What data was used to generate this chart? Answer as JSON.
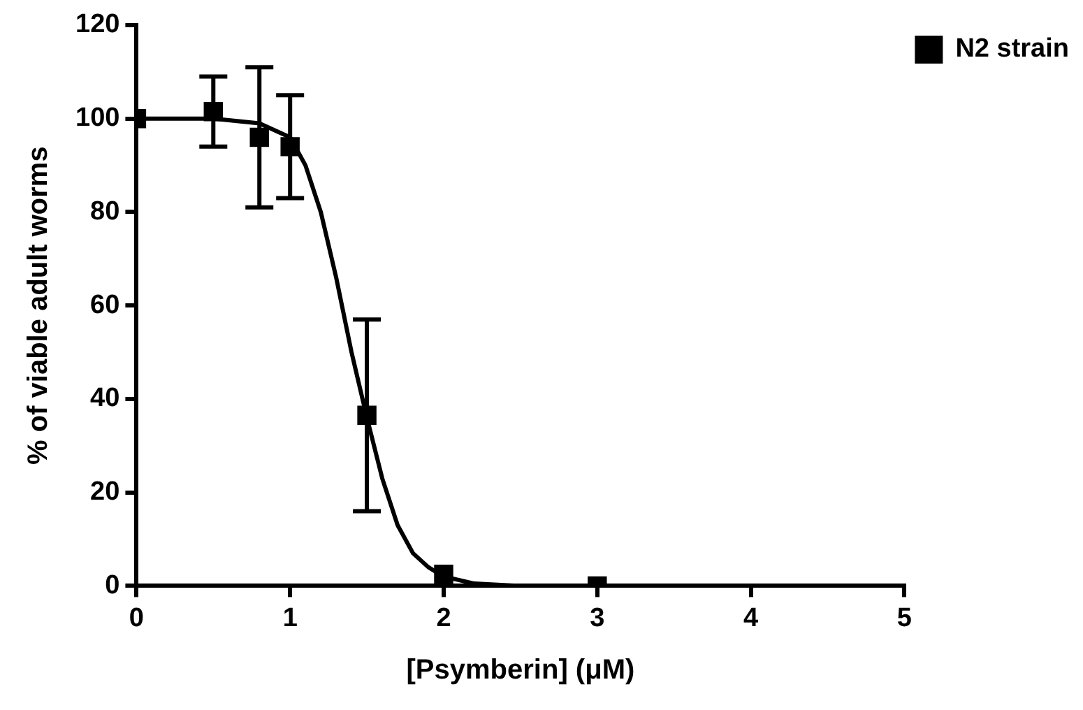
{
  "chart_data": {
    "type": "scatter",
    "xlabel": "[Psymberin] (μM)",
    "ylabel": "% of viable adult worms",
    "xlim": [
      0,
      5
    ],
    "xticks": [
      0,
      1,
      2,
      3,
      4,
      5
    ],
    "ylim": [
      0,
      120
    ],
    "yticks": [
      0,
      20,
      40,
      60,
      80,
      100,
      120
    ],
    "grid": false,
    "legend": "top right",
    "marker": "square",
    "series": [
      {
        "name": "N2 strain",
        "color": "#000000",
        "x": [
          0,
          0.5,
          0.8,
          1,
          1.5,
          2,
          3
        ],
        "values": [
          100,
          101.5,
          96,
          94,
          36.5,
          2.5,
          0
        ],
        "errors": [
          null,
          7.5,
          15,
          11,
          20.5,
          null,
          null
        ]
      },
      {
        "type": "line",
        "color": "#000000",
        "marker": "none",
        "line_style": "solid",
        "x": [
          0,
          0.5,
          0.8,
          1,
          1.1,
          1.2,
          1.3,
          1.4,
          1.5,
          1.6,
          1.7,
          1.8,
          1.9,
          2,
          2.2,
          2.5
        ],
        "values": [
          100,
          100,
          99,
          96,
          90,
          80,
          66,
          50,
          36,
          23,
          13,
          7,
          4,
          2,
          0.5,
          0
        ]
      }
    ]
  }
}
